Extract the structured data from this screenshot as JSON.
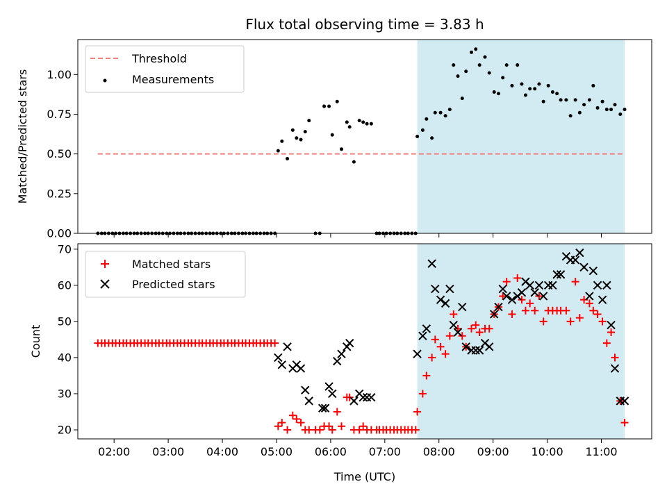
{
  "chart_data": [
    {
      "type": "scatter",
      "title": "Flux total observing time = 3.83 h",
      "xlabel": "",
      "ylabel": "Matched/Predicted stars",
      "ylim": [
        0,
        1.22
      ],
      "xlim": [
        1.33,
        11.93
      ],
      "yticks": [
        "0.00",
        "0.25",
        "0.50",
        "0.75",
        "1.00"
      ],
      "ytick_values": [
        0,
        0.25,
        0.5,
        0.75,
        1.0
      ],
      "grid": false,
      "legend_position": "top-left",
      "shaded_region": {
        "x_start": 7.6,
        "x_end": 11.43,
        "color": "#add8e6"
      },
      "threshold": {
        "name": "Threshold",
        "y": 0.5,
        "x_start": 1.7,
        "x_end": 11.43,
        "color": "#f08080"
      },
      "series": [
        {
          "name": "Measurements",
          "color": "#000000",
          "marker": "dot",
          "x": [
            1.7,
            1.77,
            1.83,
            1.9,
            1.97,
            2.03,
            2.1,
            2.17,
            2.23,
            2.3,
            2.37,
            2.43,
            2.5,
            2.57,
            2.63,
            2.7,
            2.77,
            2.83,
            2.9,
            2.97,
            3.03,
            3.1,
            3.17,
            3.23,
            3.3,
            3.37,
            3.43,
            3.5,
            3.57,
            3.63,
            3.7,
            3.77,
            3.83,
            3.9,
            3.97,
            4.03,
            4.1,
            4.17,
            4.23,
            4.3,
            4.37,
            4.43,
            4.5,
            4.57,
            4.63,
            4.7,
            4.77,
            4.83,
            4.9,
            4.97,
            5.03,
            5.1,
            5.2,
            5.3,
            5.37,
            5.45,
            5.53,
            5.6,
            5.72,
            5.8,
            5.88,
            5.97,
            6.03,
            6.12,
            6.2,
            6.3,
            6.35,
            6.43,
            6.53,
            6.6,
            6.67,
            6.75,
            6.85,
            6.9,
            6.97,
            7.03,
            7.1,
            7.17,
            7.23,
            7.3,
            7.37,
            7.43,
            7.5,
            7.57,
            7.6,
            7.7,
            7.77,
            7.87,
            7.93,
            8.03,
            8.12,
            8.2,
            8.27,
            8.35,
            8.43,
            8.5,
            8.6,
            8.68,
            8.75,
            8.85,
            8.93,
            9.02,
            9.1,
            9.18,
            9.25,
            9.35,
            9.45,
            9.53,
            9.6,
            9.68,
            9.77,
            9.85,
            9.93,
            10.02,
            10.1,
            10.18,
            10.25,
            10.35,
            10.43,
            10.52,
            10.6,
            10.68,
            10.78,
            10.85,
            10.93,
            11.02,
            11.1,
            11.18,
            11.25,
            11.35,
            11.43
          ],
          "y": [
            0,
            0,
            0,
            0,
            0,
            0,
            0,
            0,
            0,
            0,
            0,
            0,
            0,
            0,
            0,
            0,
            0,
            0,
            0,
            0,
            0,
            0,
            0,
            0,
            0,
            0,
            0,
            0,
            0,
            0,
            0,
            0,
            0,
            0,
            0,
            0,
            0,
            0,
            0,
            0,
            0,
            0,
            0,
            0,
            0,
            0,
            0,
            0,
            0,
            0,
            0.52,
            0.58,
            0.47,
            0.65,
            0.6,
            0.59,
            0.64,
            0.71,
            0,
            0,
            0.8,
            0.8,
            0.62,
            0.83,
            0.53,
            0.7,
            0.67,
            0.45,
            0.71,
            0.7,
            0.69,
            0.69,
            0,
            0,
            0,
            0,
            0,
            0,
            0,
            0,
            0,
            0,
            0,
            0,
            0.61,
            0.65,
            0.72,
            0.6,
            0.76,
            0.76,
            0.74,
            0.78,
            1.06,
            0.99,
            0.85,
            1.02,
            1.14,
            1.16,
            1.06,
            1.11,
            1.01,
            0.89,
            0.88,
            0.98,
            1.06,
            0.93,
            1.06,
            0.94,
            0.87,
            0.91,
            0.91,
            0.94,
            0.83,
            0.93,
            0.89,
            0.88,
            0.84,
            0.84,
            0.74,
            0.84,
            0.76,
            0.81,
            0.84,
            0.93,
            0.79,
            0.83,
            0.78,
            0.78,
            0.81,
            0.75,
            0.78
          ]
        }
      ]
    },
    {
      "type": "scatter",
      "title": "",
      "xlabel": "Time (UTC)",
      "ylabel": "Count",
      "ylim": [
        17.5,
        71.5
      ],
      "xlim": [
        1.33,
        11.93
      ],
      "yticks": [
        "20",
        "30",
        "40",
        "50",
        "60",
        "70"
      ],
      "ytick_values": [
        20,
        30,
        40,
        50,
        60,
        70
      ],
      "xticks": [
        "02:00",
        "03:00",
        "04:00",
        "05:00",
        "06:00",
        "07:00",
        "08:00",
        "09:00",
        "10:00",
        "11:00"
      ],
      "xtick_values": [
        2,
        3,
        4,
        5,
        6,
        7,
        8,
        9,
        10,
        11
      ],
      "grid": false,
      "legend_position": "top-left",
      "shaded_region": {
        "x_start": 7.6,
        "x_end": 11.43,
        "color": "#add8e6"
      },
      "series": [
        {
          "name": "Matched stars",
          "color": "#ff0000",
          "marker": "plus",
          "x": [
            1.7,
            1.77,
            1.83,
            1.9,
            1.97,
            2.03,
            2.1,
            2.17,
            2.23,
            2.3,
            2.37,
            2.43,
            2.5,
            2.57,
            2.63,
            2.7,
            2.77,
            2.83,
            2.9,
            2.97,
            3.03,
            3.1,
            3.17,
            3.23,
            3.3,
            3.37,
            3.43,
            3.5,
            3.57,
            3.63,
            3.7,
            3.77,
            3.83,
            3.9,
            3.97,
            4.03,
            4.1,
            4.17,
            4.23,
            4.3,
            4.37,
            4.43,
            4.5,
            4.57,
            4.63,
            4.7,
            4.77,
            4.83,
            4.9,
            4.97,
            5.03,
            5.1,
            5.2,
            5.3,
            5.37,
            5.45,
            5.53,
            5.6,
            5.72,
            5.8,
            5.88,
            5.97,
            6.03,
            6.12,
            6.2,
            6.3,
            6.35,
            6.43,
            6.53,
            6.6,
            6.67,
            6.75,
            6.85,
            6.9,
            6.97,
            7.03,
            7.1,
            7.17,
            7.23,
            7.3,
            7.37,
            7.43,
            7.5,
            7.57,
            7.6,
            7.7,
            7.77,
            7.87,
            7.93,
            8.03,
            8.12,
            8.2,
            8.27,
            8.35,
            8.43,
            8.5,
            8.6,
            8.68,
            8.75,
            8.85,
            8.93,
            9.02,
            9.1,
            9.18,
            9.25,
            9.35,
            9.45,
            9.53,
            9.6,
            9.68,
            9.77,
            9.85,
            9.93,
            10.02,
            10.1,
            10.18,
            10.25,
            10.35,
            10.43,
            10.52,
            10.6,
            10.68,
            10.78,
            10.85,
            10.93,
            11.02,
            11.1,
            11.18,
            11.25,
            11.35,
            11.43
          ],
          "y": [
            44,
            44,
            44,
            44,
            44,
            44,
            44,
            44,
            44,
            44,
            44,
            44,
            44,
            44,
            44,
            44,
            44,
            44,
            44,
            44,
            44,
            44,
            44,
            44,
            44,
            44,
            44,
            44,
            44,
            44,
            44,
            44,
            44,
            44,
            44,
            44,
            44,
            44,
            44,
            44,
            44,
            44,
            44,
            44,
            44,
            44,
            44,
            44,
            44,
            44,
            21,
            22,
            20,
            24,
            23,
            22,
            20,
            20,
            20,
            20,
            21,
            21,
            20,
            25,
            21,
            29,
            29,
            20,
            20,
            21,
            20,
            20,
            20,
            20,
            20,
            20,
            20,
            20,
            20,
            20,
            20,
            20,
            20,
            20,
            25,
            30,
            35,
            40,
            45,
            43,
            41,
            46,
            52,
            48,
            46,
            43,
            48,
            49,
            47,
            48,
            48,
            52,
            54,
            57,
            61,
            52,
            62,
            56,
            53,
            55,
            53,
            57,
            50,
            53,
            53,
            53,
            53,
            53,
            50,
            61,
            51,
            56,
            55,
            53,
            52,
            50,
            44,
            47,
            40,
            28,
            22
          ]
        },
        {
          "name": "Predicted stars",
          "color": "#000000",
          "marker": "x",
          "x": [
            5.03,
            5.1,
            5.2,
            5.3,
            5.37,
            5.45,
            5.53,
            5.6,
            5.85,
            5.9,
            5.97,
            6.03,
            6.12,
            6.2,
            6.3,
            6.35,
            6.43,
            6.53,
            6.6,
            6.67,
            6.75,
            7.6,
            7.7,
            7.77,
            7.87,
            7.93,
            8.03,
            8.12,
            8.2,
            8.27,
            8.35,
            8.43,
            8.5,
            8.6,
            8.68,
            8.75,
            8.85,
            8.93,
            9.02,
            9.1,
            9.18,
            9.25,
            9.35,
            9.45,
            9.53,
            9.6,
            9.68,
            9.77,
            9.85,
            9.93,
            10.02,
            10.1,
            10.18,
            10.25,
            10.35,
            10.43,
            10.52,
            10.6,
            10.68,
            10.78,
            10.85,
            10.93,
            11.02,
            11.1,
            11.18,
            11.25,
            11.35,
            11.43
          ],
          "y": [
            40,
            38,
            43,
            37,
            38,
            37,
            31,
            28,
            26,
            26,
            32,
            30,
            39,
            41,
            43,
            44,
            28,
            30,
            29,
            29,
            29,
            41,
            46,
            48,
            66,
            59,
            56,
            55,
            59,
            49,
            47,
            54,
            43,
            42,
            42,
            42,
            44,
            43,
            52,
            54,
            59,
            57,
            56,
            57,
            58,
            61,
            60,
            58,
            60,
            57,
            60,
            60,
            63,
            63,
            68,
            67,
            67,
            69,
            65,
            57,
            64,
            60,
            56,
            60,
            49,
            37,
            28,
            28
          ]
        }
      ]
    }
  ]
}
